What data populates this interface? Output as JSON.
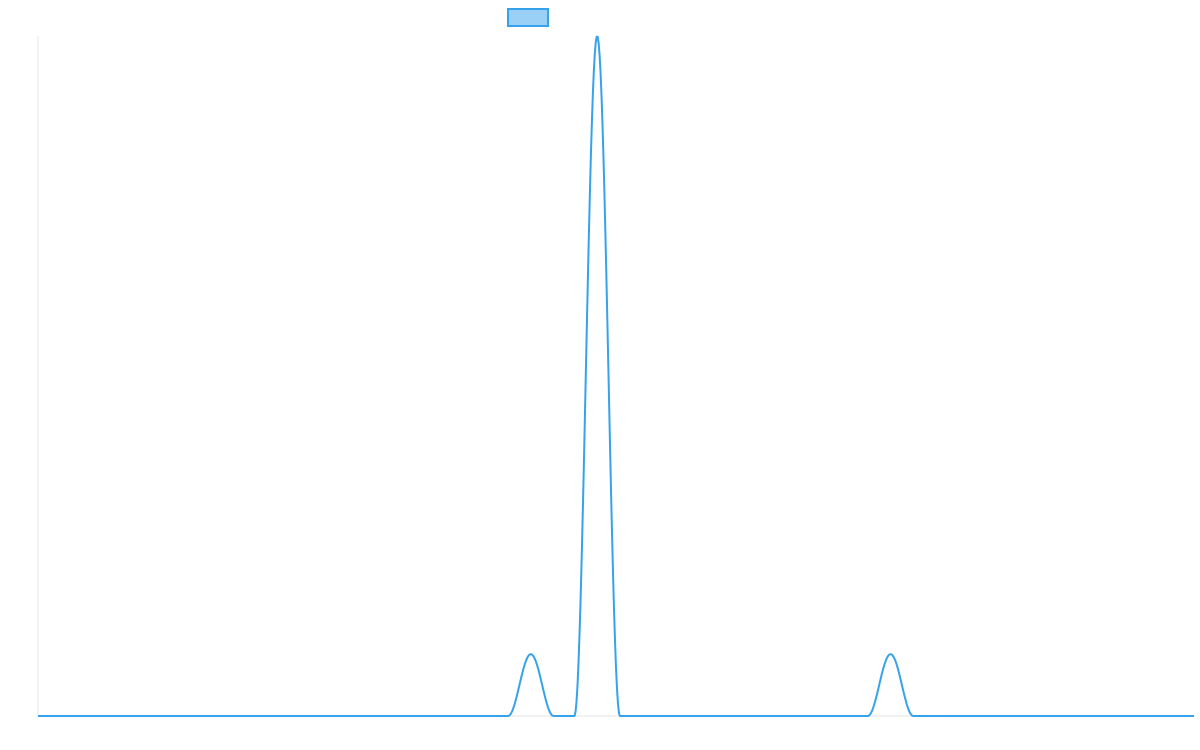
{
  "chart_data": {
    "type": "line",
    "title": "",
    "xlabel": "",
    "ylabel": "",
    "legend": {
      "placement": "top-center",
      "show_label": false
    },
    "series": [
      {
        "color": "#36a2eb",
        "fill": "#9ad0f5",
        "line_width": 2,
        "peaks": [
          {
            "center": 0.4263,
            "half_width": 0.01969,
            "height": 0.0909
          },
          {
            "center": 0.4837,
            "half_width": 0.01969,
            "height": 1.0
          },
          {
            "center": 0.7375,
            "half_width": 0.01969,
            "height": 0.0909
          }
        ],
        "baseline": 0
      }
    ],
    "xlim": [
      0,
      1
    ],
    "ylim": [
      0,
      1
    ],
    "grid": false,
    "axes": {
      "left_axis_color": "#e6e6e6",
      "bottom_axis_color": "#e6e6e6"
    }
  }
}
